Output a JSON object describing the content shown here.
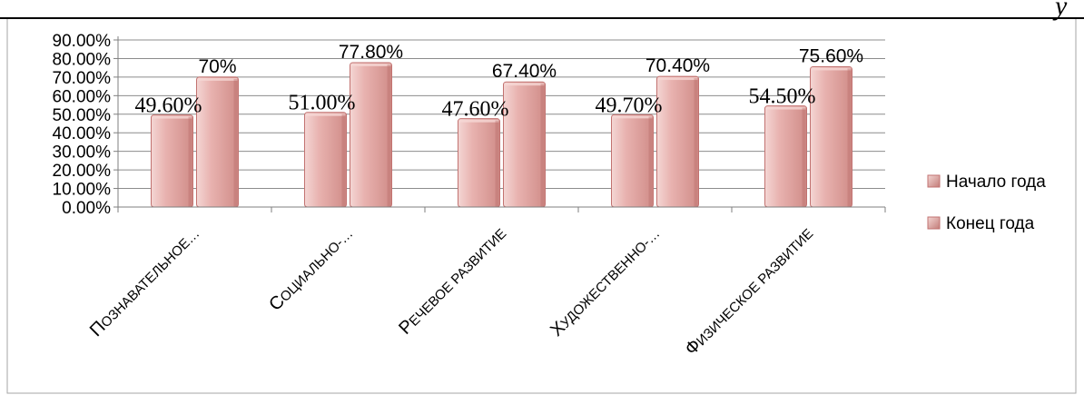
{
  "chart_data": {
    "type": "bar",
    "categories": [
      "Познавательное…",
      "Социально-…",
      "Речевое развитие",
      "Художественно-…",
      "Физическое развитие"
    ],
    "series": [
      {
        "name": "Начало года",
        "values": [
          49.6,
          51.0,
          47.6,
          49.7,
          54.5
        ],
        "labels": [
          "49.60%",
          "51.00%",
          "47.60%",
          "49.70%",
          "54.50%"
        ]
      },
      {
        "name": "Конец года",
        "values": [
          70.0,
          77.8,
          67.4,
          70.4,
          75.6
        ],
        "labels": [
          "70%",
          "77.80%",
          "67.40%",
          "70.40%",
          "75.60%"
        ]
      }
    ],
    "y_ticks": [
      "0.00%",
      "10.00%",
      "20.00%",
      "30.00%",
      "40.00%",
      "50.00%",
      "60.00%",
      "70.00%",
      "80.00%",
      "90.00%"
    ],
    "ylim": [
      0,
      90
    ],
    "grid": true,
    "legend": "right",
    "colors": {
      "bar_fill": "#e3a3a0",
      "bar_edge": "#c27270",
      "bar_highlight": "#f6d8d6",
      "bar_shadow": "#b86a66"
    }
  },
  "corner_glyph": "у"
}
